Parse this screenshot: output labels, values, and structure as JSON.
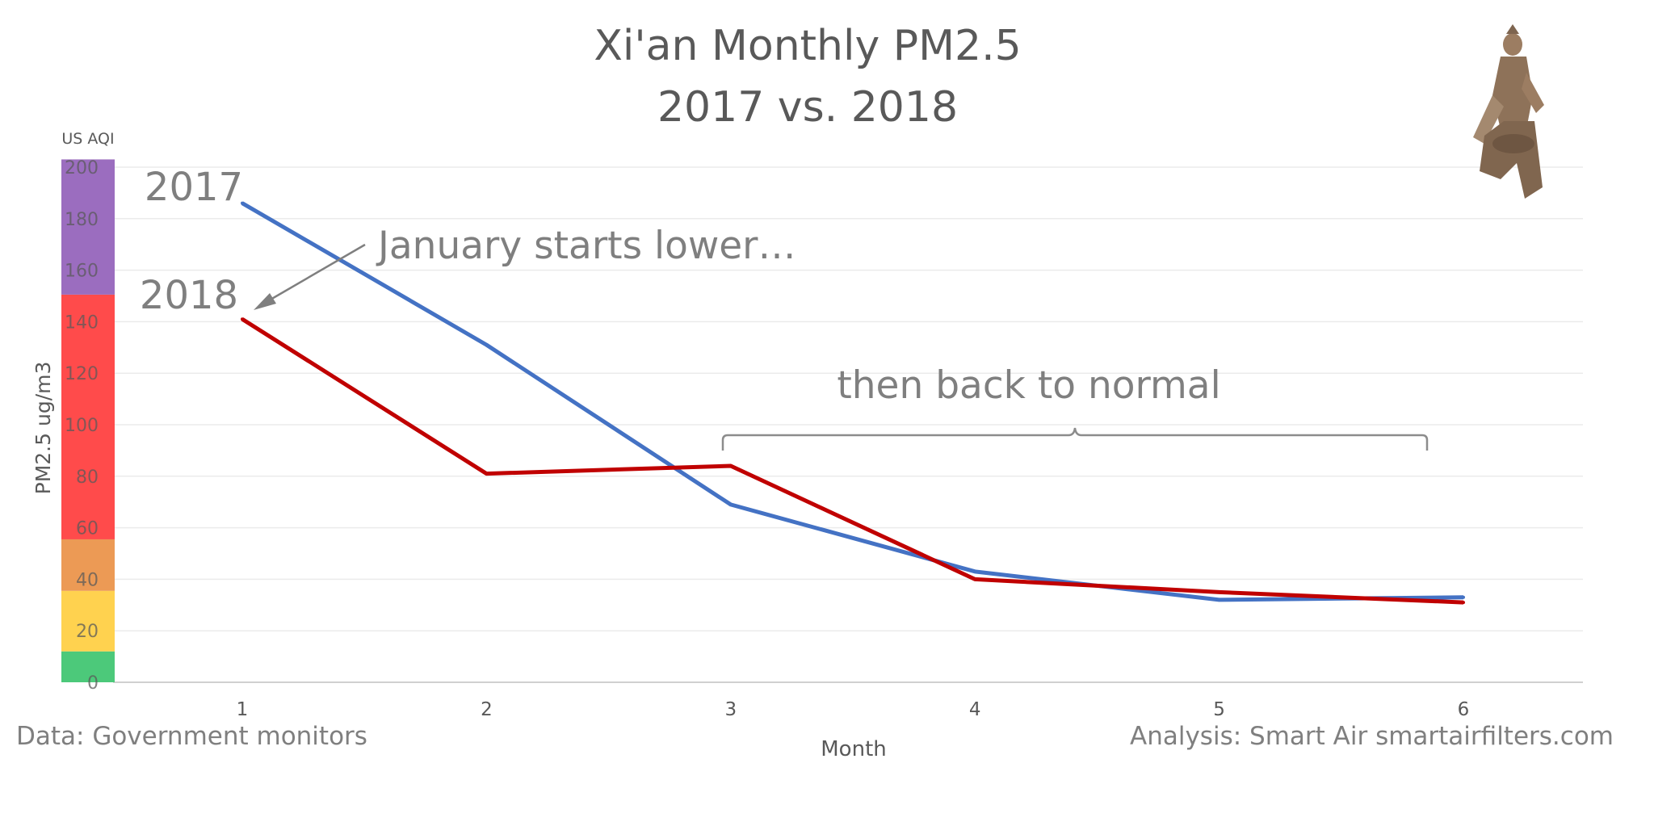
{
  "chart_data": {
    "type": "line",
    "title": "Xi'an Monthly PM2.5",
    "subtitle": "2017 vs. 2018",
    "xlabel": "Month",
    "ylabel": "PM2.5 ug/m3",
    "x": [
      1,
      2,
      3,
      4,
      5,
      6
    ],
    "xticks": [
      "1",
      "2",
      "3",
      "4",
      "5",
      "6"
    ],
    "ylim": [
      0,
      200
    ],
    "yticks": [
      "0",
      "20",
      "40",
      "60",
      "80",
      "100",
      "120",
      "140",
      "160",
      "180",
      "200"
    ],
    "grid": true,
    "series": [
      {
        "name": "2017",
        "color": "#4472C4",
        "values": [
          186,
          131,
          69,
          43,
          32,
          33
        ]
      },
      {
        "name": "2018",
        "color": "#C00000",
        "values": [
          141,
          81,
          84,
          40,
          35,
          31
        ]
      }
    ],
    "aqi_band": {
      "label": "US AQI",
      "bands": [
        {
          "from": 0,
          "to": 12,
          "color": "#4CC97A"
        },
        {
          "from": 12,
          "to": 35.5,
          "color": "#FFD24F"
        },
        {
          "from": 35.5,
          "to": 55.5,
          "color": "#EC9A55"
        },
        {
          "from": 55.5,
          "to": 150.5,
          "color": "#FF4B4B"
        },
        {
          "from": 150.5,
          "to": 203,
          "color": "#9B6DBF"
        }
      ]
    },
    "annotations": {
      "january": "January starts lower…",
      "normal": "then back to normal",
      "label_2017": "2017",
      "label_2018": "2018"
    },
    "footer": {
      "source": "Data: Government monitors",
      "analysis": "Analysis: Smart Air smartairfilters.com"
    },
    "decoration": "terracotta-warrior-icon"
  }
}
